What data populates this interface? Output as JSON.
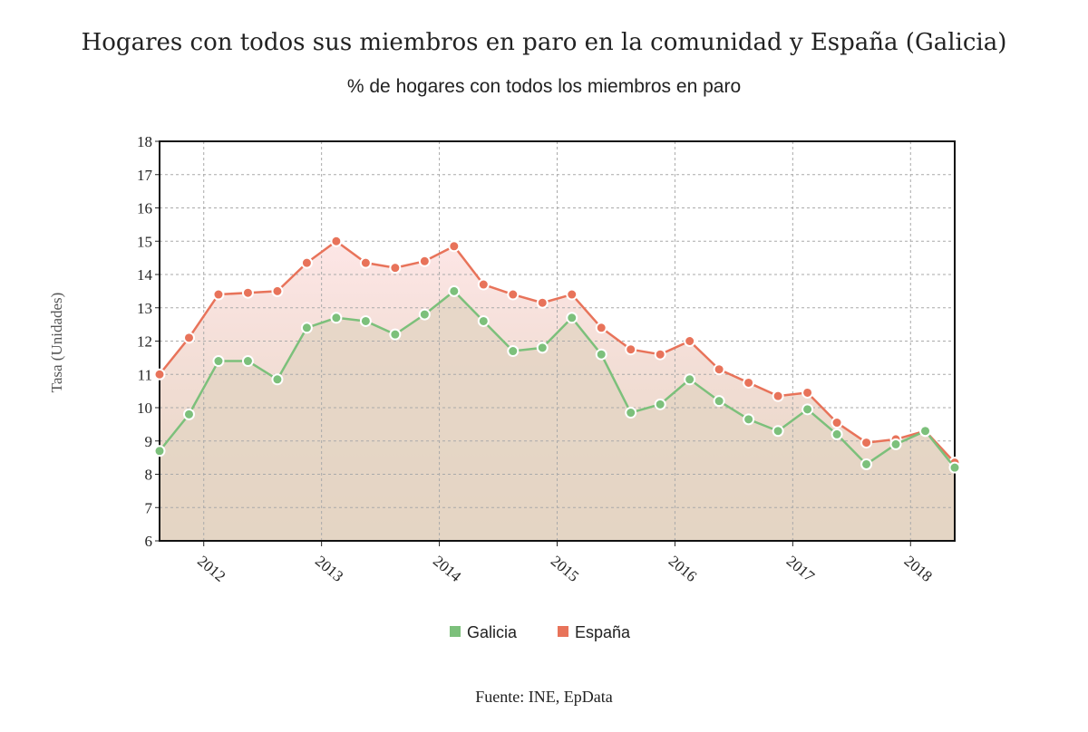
{
  "title": "Hogares con todos sus miembros en paro en la comunidad y España (Galicia)",
  "source": "Fuente: INE, EpData",
  "colors": {
    "galicia": "#7cc07b",
    "espana": "#e8735a",
    "area_bottom": "#e4d5c4",
    "area_top_band": "#fde8e8"
  },
  "chart_data": {
    "type": "line",
    "title": "% de hogares con todos los miembros en paro",
    "ylabel": "Tasa (Unidades)",
    "xlabel": "",
    "ylim": [
      6,
      18
    ],
    "yticks": [
      6,
      7,
      8,
      9,
      10,
      11,
      12,
      13,
      14,
      15,
      16,
      17,
      18
    ],
    "grid": true,
    "legend_position": "bottom",
    "x_tick_labels": [
      "2012",
      "2013",
      "2014",
      "2015",
      "2016",
      "2017",
      "2018"
    ],
    "x_tick_years": [
      2012,
      2013,
      2014,
      2015,
      2016,
      2017,
      2018
    ],
    "x": [
      "2011-T3",
      "2011-T4",
      "2012-T1",
      "2012-T2",
      "2012-T3",
      "2012-T4",
      "2013-T1",
      "2013-T2",
      "2013-T3",
      "2013-T4",
      "2014-T1",
      "2014-T2",
      "2014-T3",
      "2014-T4",
      "2015-T1",
      "2015-T2",
      "2015-T3",
      "2015-T4",
      "2016-T1",
      "2016-T2",
      "2016-T3",
      "2016-T4",
      "2017-T1",
      "2017-T2",
      "2017-T3",
      "2017-T4",
      "2018-T1",
      "2018-T2"
    ],
    "series": [
      {
        "name": "Galicia",
        "values": [
          8.7,
          9.8,
          11.4,
          11.4,
          10.85,
          12.4,
          12.7,
          12.6,
          12.2,
          12.8,
          13.5,
          12.6,
          11.7,
          11.8,
          12.7,
          11.6,
          9.85,
          10.1,
          10.85,
          10.2,
          9.65,
          9.3,
          9.95,
          9.2,
          8.3,
          8.9,
          9.3,
          8.2
        ]
      },
      {
        "name": "España",
        "values": [
          11.0,
          12.1,
          13.4,
          13.45,
          13.5,
          14.35,
          15.0,
          14.35,
          14.2,
          14.4,
          14.85,
          13.7,
          13.4,
          13.15,
          13.4,
          12.4,
          11.75,
          11.6,
          12.0,
          11.15,
          10.75,
          10.35,
          10.45,
          9.55,
          8.95,
          9.05,
          9.3,
          8.35
        ]
      }
    ]
  }
}
